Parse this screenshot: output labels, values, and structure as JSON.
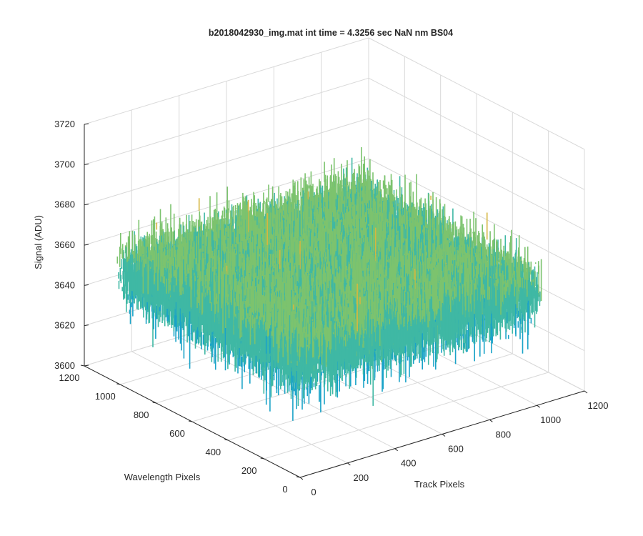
{
  "figure": {
    "title": "b2018042930_img.mat int time = 4.3256 sec  NaN nm BS04"
  },
  "chart_data": {
    "type": "surface",
    "title": "b2018042930_img.mat int time = 4.3256 sec  NaN nm BS04",
    "xlabel": "Track Pixels",
    "ylabel": "Wavelength Pixels",
    "zlabel": "Signal (ADU)",
    "xlim": [
      0,
      1200
    ],
    "ylim": [
      0,
      1200
    ],
    "zlim": [
      3600,
      3720
    ],
    "xticks": [
      0,
      200,
      400,
      600,
      800,
      1000,
      1200
    ],
    "yticks": [
      0,
      200,
      400,
      600,
      800,
      1000,
      1200
    ],
    "zticks": [
      3600,
      3620,
      3640,
      3660,
      3680,
      3700,
      3720
    ],
    "grid": true,
    "surface": {
      "x_extent": [
        0,
        1024
      ],
      "y_extent": [
        0,
        1024
      ],
      "mean_signal": 3655,
      "noise_range": [
        3615,
        3705
      ],
      "colormap": [
        "#0072bd",
        "#1aa3c8",
        "#3fb8a4",
        "#7cc36e",
        "#d5b640",
        "#edb120"
      ]
    }
  }
}
